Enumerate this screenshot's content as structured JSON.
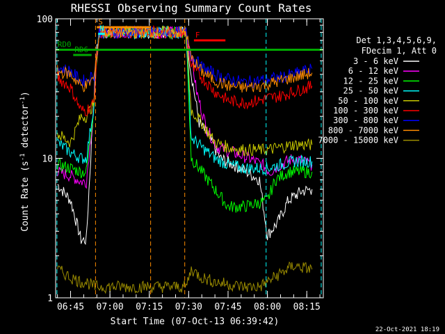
{
  "chart_data": {
    "type": "line",
    "title": "RHESSI Observing Summary Count Rates",
    "xlabel": "Start Time (07-Oct-13 06:39:42)",
    "ylabel": "Count Rate (s⁻¹ detector⁻¹)",
    "ylabel_main": "Count Rate (s",
    "ylabel_sup1": "-1",
    "ylabel_mid": " detector",
    "ylabel_sup2": "-1",
    "ylabel_end": ")",
    "yscale": "log",
    "ylim": [
      1,
      100
    ],
    "xlim_minutes": [
      -5.7,
      96.3
    ],
    "x_ticks": [
      {
        "label": "06:45",
        "min": 0
      },
      {
        "label": "07:00",
        "min": 15
      },
      {
        "label": "07:15",
        "min": 30
      },
      {
        "label": "07:30",
        "min": 45
      },
      {
        "label": "07:45",
        "min": 60
      },
      {
        "label": "08:00",
        "min": 75
      },
      {
        "label": "08:15",
        "min": 90
      }
    ],
    "y_ticks": [
      {
        "label": "100",
        "value": 100
      },
      {
        "label": "10",
        "value": 10
      },
      {
        "label": "1",
        "value": 1
      }
    ],
    "legend": {
      "placement": "right",
      "header1": "Det 1,3,4,5,6,9,",
      "header2": "FDecim 1, Att 0"
    },
    "series": [
      {
        "name": "3 - 6 keV",
        "color": "#ffffff",
        "points": [
          [
            -5,
            6.5
          ],
          [
            0,
            5
          ],
          [
            4,
            2.6
          ],
          [
            6,
            2.6
          ],
          [
            9,
            30
          ],
          [
            10,
            60
          ],
          [
            11,
            80
          ],
          [
            44,
            80
          ],
          [
            46,
            40
          ],
          [
            49,
            18
          ],
          [
            53,
            14
          ],
          [
            57,
            10
          ],
          [
            62,
            9
          ],
          [
            67,
            8
          ],
          [
            72,
            7
          ],
          [
            75,
            2.8
          ],
          [
            79,
            3.5
          ],
          [
            83,
            5
          ],
          [
            88,
            5.8
          ],
          [
            92,
            6
          ]
        ]
      },
      {
        "name": "6 - 12 keV",
        "color": "#ff00ff",
        "points": [
          [
            -5,
            8
          ],
          [
            0,
            7.5
          ],
          [
            4,
            6.8
          ],
          [
            6,
            6.8
          ],
          [
            9,
            25
          ],
          [
            10,
            55
          ],
          [
            11,
            80
          ],
          [
            44,
            80
          ],
          [
            46,
            55
          ],
          [
            48,
            30
          ],
          [
            52,
            16
          ],
          [
            56,
            12
          ],
          [
            62,
            11
          ],
          [
            68,
            10
          ],
          [
            73,
            9
          ],
          [
            76,
            8
          ],
          [
            80,
            9
          ],
          [
            85,
            10
          ],
          [
            92,
            9
          ]
        ]
      },
      {
        "name": "12 - 25 keV",
        "color": "#00ff00",
        "points": [
          [
            -5,
            9
          ],
          [
            0,
            8.5
          ],
          [
            4,
            8
          ],
          [
            6,
            8
          ],
          [
            9,
            25
          ],
          [
            10,
            55
          ],
          [
            11,
            80
          ],
          [
            44,
            80
          ],
          [
            46,
            10
          ],
          [
            50,
            8
          ],
          [
            55,
            6
          ],
          [
            60,
            4.5
          ],
          [
            66,
            4.5
          ],
          [
            72,
            4.8
          ],
          [
            75,
            5
          ],
          [
            78,
            7
          ],
          [
            83,
            8
          ],
          [
            88,
            8
          ],
          [
            92,
            8
          ]
        ]
      },
      {
        "name": "25 - 50 keV",
        "color": "#00ffff",
        "points": [
          [
            -5,
            13
          ],
          [
            0,
            11
          ],
          [
            4,
            10
          ],
          [
            6,
            10
          ],
          [
            9,
            25
          ],
          [
            10,
            55
          ],
          [
            11,
            80
          ],
          [
            44,
            80
          ],
          [
            46,
            14
          ],
          [
            50,
            12
          ],
          [
            55,
            10
          ],
          [
            60,
            9
          ],
          [
            66,
            8.5
          ],
          [
            72,
            8.5
          ],
          [
            75,
            8.5
          ],
          [
            80,
            9
          ],
          [
            85,
            9.5
          ],
          [
            92,
            9.5
          ]
        ]
      },
      {
        "name": "50 - 100 keV",
        "color": "#c8c800",
        "points": [
          [
            -5,
            15
          ],
          [
            0,
            13
          ],
          [
            4,
            20
          ],
          [
            6,
            20
          ],
          [
            9,
            25
          ],
          [
            10,
            55
          ],
          [
            11,
            80
          ],
          [
            44,
            80
          ],
          [
            46,
            22
          ],
          [
            50,
            18
          ],
          [
            55,
            13
          ],
          [
            60,
            12
          ],
          [
            66,
            11.5
          ],
          [
            72,
            11.5
          ],
          [
            75,
            11.5
          ],
          [
            80,
            12
          ],
          [
            85,
            12.5
          ],
          [
            92,
            12.5
          ]
        ]
      },
      {
        "name": "100 - 300 keV",
        "color": "#ff0000",
        "points": [
          [
            -5,
            38
          ],
          [
            0,
            32
          ],
          [
            4,
            22
          ],
          [
            6,
            22
          ],
          [
            9,
            25
          ],
          [
            10,
            55
          ],
          [
            11,
            80
          ],
          [
            44,
            80
          ],
          [
            46,
            45
          ],
          [
            50,
            38
          ],
          [
            55,
            30
          ],
          [
            60,
            26
          ],
          [
            66,
            25
          ],
          [
            72,
            26
          ],
          [
            75,
            27
          ],
          [
            80,
            28
          ],
          [
            85,
            30
          ],
          [
            92,
            33
          ]
        ]
      },
      {
        "name": "300 - 800 keV",
        "color": "#0000ff",
        "points": [
          [
            -5,
            45
          ],
          [
            0,
            42
          ],
          [
            4,
            36
          ],
          [
            6,
            36
          ],
          [
            9,
            40
          ],
          [
            10,
            55
          ],
          [
            11,
            80
          ],
          [
            44,
            80
          ],
          [
            46,
            55
          ],
          [
            50,
            45
          ],
          [
            55,
            40
          ],
          [
            60,
            37
          ],
          [
            66,
            35
          ],
          [
            72,
            36
          ],
          [
            75,
            37
          ],
          [
            80,
            38
          ],
          [
            85,
            40
          ],
          [
            92,
            44
          ]
        ]
      },
      {
        "name": "800 - 7000 keV",
        "color": "#ff8c00",
        "points": [
          [
            -5,
            42
          ],
          [
            0,
            40
          ],
          [
            4,
            33
          ],
          [
            6,
            33
          ],
          [
            9,
            38
          ],
          [
            10,
            55
          ],
          [
            11,
            80
          ],
          [
            44,
            80
          ],
          [
            46,
            52
          ],
          [
            50,
            42
          ],
          [
            55,
            36
          ],
          [
            60,
            33
          ],
          [
            66,
            32
          ],
          [
            72,
            33
          ],
          [
            75,
            34
          ],
          [
            80,
            36
          ],
          [
            85,
            38
          ],
          [
            92,
            41
          ]
        ]
      },
      {
        "name": "7000 - 15000 keV",
        "color": "#9b8c00",
        "points": [
          [
            -5,
            1.6
          ],
          [
            0,
            1.4
          ],
          [
            4,
            1.3
          ],
          [
            6,
            1.3
          ],
          [
            9,
            1.2
          ],
          [
            11,
            1.2
          ],
          [
            44,
            1.2
          ],
          [
            46,
            1.6
          ],
          [
            50,
            1.4
          ],
          [
            55,
            1.3
          ],
          [
            60,
            1.25
          ],
          [
            66,
            1.2
          ],
          [
            72,
            1.2
          ],
          [
            75,
            1.3
          ],
          [
            80,
            1.5
          ],
          [
            85,
            1.7
          ],
          [
            92,
            1.6
          ]
        ]
      }
    ],
    "annotations": [
      {
        "label": "S",
        "color": "#ff8c00",
        "x_start": 10,
        "x_end": 30.5,
        "y": 87
      },
      {
        "label": "N",
        "color": "#00ffff",
        "x_start": 10.5,
        "x_end": 13,
        "y": 78
      },
      {
        "label": "F",
        "color": "#ff0000",
        "x_start": 47,
        "x_end": 59,
        "y": 70
      },
      {
        "label": "RD0",
        "color": "#00aa00",
        "x_start": -5.5,
        "x_end": 96,
        "y": 60
      },
      {
        "label": "RD6",
        "color": "#00aa00",
        "x_start": 1,
        "x_end": 8,
        "y": 55
      }
    ],
    "vlines": [
      {
        "x": 9.5,
        "color": "#ff8c00"
      },
      {
        "x": 30.5,
        "color": "#ff8c00"
      },
      {
        "x": 43.5,
        "color": "#ff8c00"
      },
      {
        "x": -5.2,
        "color": "#00ffff"
      },
      {
        "x": 74.5,
        "color": "#00ffff"
      },
      {
        "x": 95.5,
        "color": "#00ffff"
      }
    ],
    "footer": "22-Oct-2021 18:19"
  }
}
